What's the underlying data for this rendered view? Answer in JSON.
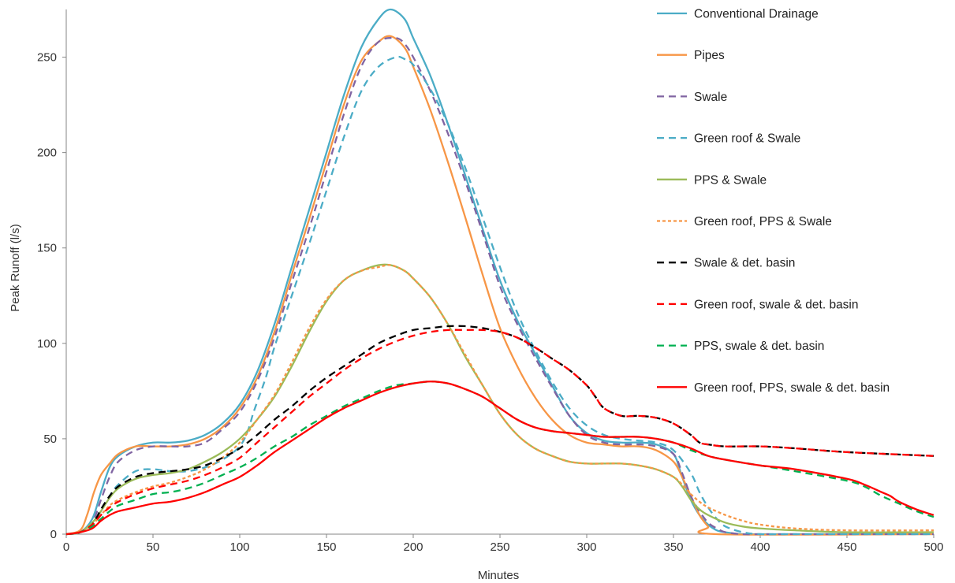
{
  "chart_data": {
    "type": "line",
    "xlabel": "Minutes",
    "ylabel": "Peak Runoff (l/s)",
    "xlim": [
      0,
      500
    ],
    "ylim": [
      0,
      275
    ],
    "xticks": [
      0,
      50,
      100,
      150,
      200,
      250,
      300,
      350,
      400,
      450,
      500
    ],
    "yticks": [
      0,
      50,
      100,
      150,
      200,
      250
    ],
    "grid": false,
    "legend_position": "right",
    "series": [
      {
        "name": "Conventional Drainage",
        "color": "#4bacc6",
        "dash": "solid",
        "x": [
          0,
          8,
          15,
          20,
          25,
          30,
          40,
          50,
          60,
          70,
          80,
          90,
          100,
          110,
          120,
          130,
          140,
          150,
          160,
          170,
          180,
          187,
          195,
          200,
          210,
          220,
          230,
          240,
          250,
          260,
          270,
          280,
          290,
          300,
          310,
          320,
          330,
          340,
          350,
          355,
          360,
          365,
          370,
          375,
          380,
          390,
          400,
          420,
          450,
          500
        ],
        "y": [
          0,
          1,
          8,
          22,
          35,
          41,
          46,
          48,
          48,
          49,
          52,
          58,
          68,
          85,
          110,
          140,
          170,
          200,
          230,
          255,
          270,
          275,
          270,
          260,
          240,
          215,
          188,
          160,
          133,
          112,
          95,
          78,
          62,
          53,
          49,
          48,
          48,
          47,
          42,
          30,
          18,
          10,
          5,
          2,
          1,
          0,
          0,
          0,
          0,
          0
        ]
      },
      {
        "name": "Pipes",
        "color": "#f79646",
        "dash": "solid",
        "x": [
          0,
          8,
          12,
          16,
          20,
          25,
          30,
          40,
          50,
          60,
          70,
          80,
          90,
          100,
          110,
          120,
          130,
          140,
          150,
          160,
          170,
          180,
          187,
          195,
          200,
          210,
          220,
          230,
          240,
          250,
          260,
          270,
          280,
          290,
          300,
          310,
          320,
          330,
          340,
          350,
          355,
          360,
          365,
          370,
          375,
          500
        ],
        "y": [
          0,
          2,
          10,
          22,
          31,
          37,
          42,
          46,
          46,
          46,
          47,
          50,
          56,
          66,
          82,
          106,
          136,
          165,
          195,
          225,
          248,
          258,
          261,
          255,
          245,
          222,
          195,
          166,
          136,
          108,
          88,
          72,
          60,
          52,
          48,
          47,
          46,
          46,
          44,
          38,
          30,
          20,
          10,
          4,
          0,
          0
        ]
      },
      {
        "name": "Swale",
        "color": "#8064a2",
        "dash": "dash",
        "x": [
          0,
          8,
          15,
          20,
          25,
          30,
          40,
          50,
          60,
          70,
          80,
          90,
          100,
          110,
          120,
          130,
          140,
          150,
          160,
          170,
          180,
          190,
          195,
          200,
          210,
          220,
          230,
          240,
          250,
          260,
          270,
          280,
          290,
          300,
          310,
          320,
          330,
          340,
          350,
          355,
          360,
          365,
          370,
          375,
          380,
          390,
          400,
          420,
          450,
          500
        ],
        "y": [
          0,
          1,
          6,
          18,
          30,
          38,
          44,
          46,
          46,
          46,
          48,
          55,
          64,
          80,
          103,
          132,
          160,
          190,
          220,
          245,
          258,
          260,
          257,
          250,
          232,
          210,
          185,
          158,
          130,
          110,
          93,
          77,
          62,
          52,
          48,
          47,
          47,
          46,
          42,
          32,
          20,
          12,
          6,
          3,
          1,
          0,
          0,
          0,
          0,
          0
        ]
      },
      {
        "name": "Green roof & Swale",
        "color": "#4bacc6",
        "dash": "dash",
        "x": [
          0,
          8,
          15,
          20,
          25,
          30,
          40,
          50,
          60,
          70,
          80,
          90,
          100,
          105,
          108,
          115,
          120,
          130,
          140,
          150,
          160,
          170,
          180,
          190,
          195,
          200,
          210,
          220,
          230,
          240,
          250,
          260,
          270,
          280,
          290,
          300,
          310,
          320,
          330,
          340,
          350,
          360,
          365,
          370,
          375,
          380,
          390,
          400,
          420,
          450,
          500
        ],
        "y": [
          0,
          1,
          5,
          12,
          20,
          26,
          33,
          34,
          33,
          33,
          35,
          39,
          46,
          55,
          64,
          82,
          98,
          125,
          152,
          180,
          208,
          232,
          245,
          250,
          249,
          246,
          233,
          215,
          192,
          166,
          140,
          116,
          97,
          80,
          66,
          57,
          52,
          50,
          49,
          48,
          44,
          32,
          22,
          14,
          8,
          4,
          1,
          0,
          0,
          0,
          0
        ]
      },
      {
        "name": "PPS & Swale",
        "color": "#9bbb59",
        "dash": "solid",
        "x": [
          0,
          8,
          15,
          20,
          25,
          30,
          40,
          50,
          60,
          70,
          80,
          90,
          100,
          110,
          120,
          130,
          140,
          150,
          160,
          170,
          180,
          187,
          195,
          200,
          210,
          220,
          230,
          240,
          250,
          260,
          270,
          280,
          290,
          300,
          310,
          320,
          330,
          340,
          350,
          355,
          360,
          365,
          370,
          380,
          390,
          400,
          420,
          450,
          500
        ],
        "y": [
          0,
          1,
          6,
          12,
          19,
          24,
          29,
          31,
          32,
          34,
          38,
          43,
          50,
          60,
          72,
          88,
          106,
          122,
          133,
          138,
          141,
          141,
          138,
          134,
          124,
          110,
          93,
          78,
          63,
          52,
          45,
          41,
          38,
          37,
          37,
          37,
          36,
          34,
          30,
          25,
          18,
          13,
          10,
          6,
          4,
          3,
          2,
          1,
          1
        ]
      },
      {
        "name": "Green roof, PPS & Swale",
        "color": "#f79646",
        "dash": "dot",
        "x": [
          0,
          8,
          15,
          20,
          25,
          30,
          40,
          50,
          60,
          70,
          80,
          90,
          100,
          110,
          120,
          130,
          140,
          150,
          160,
          170,
          180,
          187,
          195,
          200,
          210,
          220,
          230,
          240,
          250,
          260,
          270,
          280,
          290,
          300,
          310,
          320,
          330,
          340,
          350,
          355,
          360,
          365,
          370,
          380,
          390,
          400,
          420,
          450,
          500
        ],
        "y": [
          0,
          1,
          5,
          10,
          15,
          18,
          22,
          25,
          27,
          30,
          34,
          40,
          48,
          60,
          73,
          90,
          108,
          123,
          133,
          138,
          140,
          141,
          138,
          134,
          124,
          110,
          94,
          78,
          63,
          52,
          45,
          41,
          38,
          37,
          37,
          37,
          36,
          34,
          30,
          26,
          21,
          17,
          14,
          10,
          7,
          5,
          3,
          2,
          2
        ]
      },
      {
        "name": "Swale & det. basin",
        "color": "#000000",
        "dash": "dash",
        "x": [
          0,
          8,
          15,
          20,
          25,
          30,
          40,
          50,
          60,
          70,
          80,
          90,
          100,
          110,
          120,
          130,
          140,
          150,
          160,
          170,
          180,
          190,
          200,
          210,
          220,
          230,
          240,
          250,
          260,
          270,
          280,
          290,
          300,
          305,
          310,
          320,
          330,
          340,
          350,
          360,
          365,
          370,
          380,
          400,
          420,
          450,
          500
        ],
        "y": [
          0,
          1,
          5,
          13,
          20,
          25,
          30,
          32,
          33,
          34,
          36,
          40,
          45,
          52,
          60,
          67,
          75,
          82,
          88,
          94,
          100,
          104,
          107,
          108,
          109,
          109,
          108,
          106,
          103,
          98,
          92,
          86,
          78,
          72,
          66,
          62,
          62,
          61,
          58,
          52,
          48,
          47,
          46,
          46,
          45,
          43,
          41
        ]
      },
      {
        "name": "Green roof, swale & det. basin",
        "color": "#ff0000",
        "dash": "dash",
        "x": [
          0,
          8,
          15,
          20,
          25,
          30,
          40,
          50,
          60,
          70,
          80,
          90,
          100,
          110,
          120,
          130,
          140,
          150,
          160,
          170,
          180,
          190,
          200,
          210,
          220,
          230,
          240,
          250,
          260,
          270,
          280,
          290,
          300,
          305,
          310,
          320,
          330,
          340,
          350,
          360,
          365,
          370,
          380,
          400,
          420,
          450,
          500
        ],
        "y": [
          0,
          1,
          5,
          10,
          14,
          17,
          21,
          24,
          26,
          28,
          31,
          35,
          40,
          48,
          56,
          64,
          72,
          79,
          86,
          92,
          97,
          101,
          104,
          106,
          107,
          107,
          107,
          106,
          103,
          98,
          92,
          86,
          78,
          72,
          66,
          62,
          62,
          61,
          58,
          52,
          48,
          47,
          46,
          46,
          45,
          43,
          41
        ]
      },
      {
        "name": "PPS, swale & det. basin",
        "color": "#00b050",
        "dash": "dash",
        "x": [
          0,
          8,
          15,
          20,
          25,
          30,
          40,
          50,
          60,
          70,
          80,
          90,
          100,
          110,
          120,
          130,
          140,
          150,
          160,
          170,
          180,
          190,
          200,
          210,
          220,
          230,
          240,
          250,
          260,
          270,
          280,
          290,
          300,
          310,
          320,
          330,
          340,
          350,
          360,
          370,
          380,
          400,
          420,
          450,
          460,
          470,
          480,
          490,
          500
        ],
        "y": [
          0,
          1,
          4,
          8,
          12,
          15,
          18,
          21,
          22,
          24,
          27,
          31,
          35,
          40,
          46,
          51,
          57,
          62,
          67,
          71,
          75,
          78,
          79,
          80,
          79,
          76,
          72,
          66,
          60,
          56,
          54,
          53,
          52,
          51,
          51,
          51,
          50,
          48,
          44,
          41,
          39,
          36,
          33,
          28,
          25,
          20,
          16,
          12,
          9
        ]
      },
      {
        "name": "Green roof, PPS, swale & det. basin",
        "color": "#ff0000",
        "dash": "solid",
        "x": [
          0,
          8,
          15,
          20,
          25,
          30,
          40,
          50,
          60,
          70,
          80,
          90,
          100,
          110,
          120,
          130,
          140,
          150,
          160,
          170,
          180,
          190,
          200,
          210,
          220,
          230,
          240,
          250,
          260,
          270,
          280,
          290,
          300,
          310,
          320,
          330,
          340,
          350,
          360,
          370,
          380,
          400,
          420,
          450,
          460,
          470,
          475,
          480,
          490,
          500
        ],
        "y": [
          0,
          1,
          3,
          7,
          10,
          12,
          14,
          16,
          17,
          19,
          22,
          26,
          30,
          36,
          43,
          49,
          55,
          61,
          66,
          70,
          74,
          77,
          79,
          80,
          79,
          76,
          72,
          66,
          60,
          56,
          54,
          53,
          52,
          51,
          51,
          51,
          50,
          48,
          45,
          41,
          39,
          36,
          34,
          29,
          26,
          22,
          20,
          17,
          13,
          10
        ]
      }
    ]
  }
}
